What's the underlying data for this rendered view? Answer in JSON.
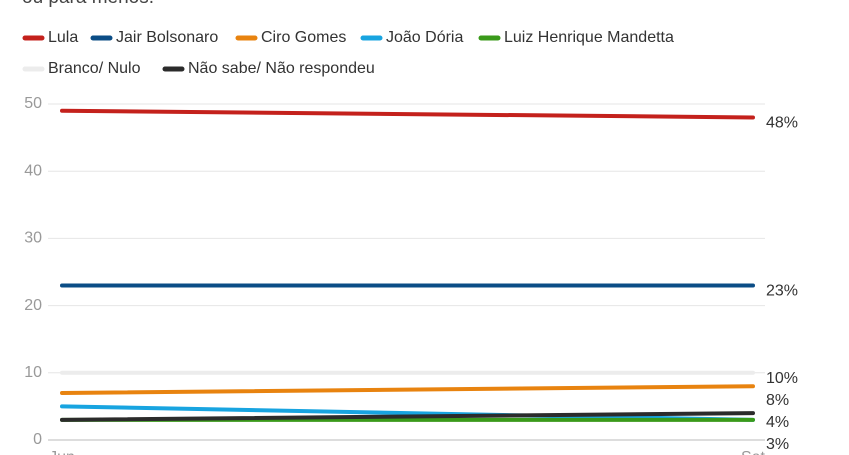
{
  "chart_data": {
    "type": "line",
    "subtitle": "ou para menos.",
    "categories": [
      "Jun",
      "Set"
    ],
    "ylim": [
      0,
      50
    ],
    "yticks": [
      0,
      10,
      20,
      30,
      40,
      50
    ],
    "grid": true,
    "series": [
      {
        "name": "Lula",
        "color": "#c4211c",
        "values": [
          49,
          48
        ],
        "value_labels": [
          null,
          "48%"
        ]
      },
      {
        "name": "Jair Bolsonaro",
        "color": "#0b4d86",
        "values": [
          23,
          23
        ],
        "value_labels": [
          null,
          "23%"
        ]
      },
      {
        "name": "Ciro Gomes",
        "color": "#e8830f",
        "values": [
          7,
          8
        ],
        "value_labels": [
          null,
          "8%"
        ]
      },
      {
        "name": "João Dória",
        "color": "#18a4e0",
        "values": [
          5,
          3
        ],
        "value_labels": [
          null,
          "3%"
        ]
      },
      {
        "name": "Luiz Henrique Mandetta",
        "color": "#3a9a1a",
        "values": [
          3,
          3
        ],
        "value_labels": [
          null,
          "3%"
        ]
      },
      {
        "name": "Branco/ Nulo",
        "color": "#ececec",
        "values": [
          10,
          10
        ],
        "value_labels": [
          null,
          "10%"
        ]
      },
      {
        "name": "Não sabe/ Não respondeu",
        "color": "#2b2b2b",
        "values": [
          3,
          4
        ],
        "value_labels": [
          null,
          "4%"
        ]
      }
    ]
  }
}
